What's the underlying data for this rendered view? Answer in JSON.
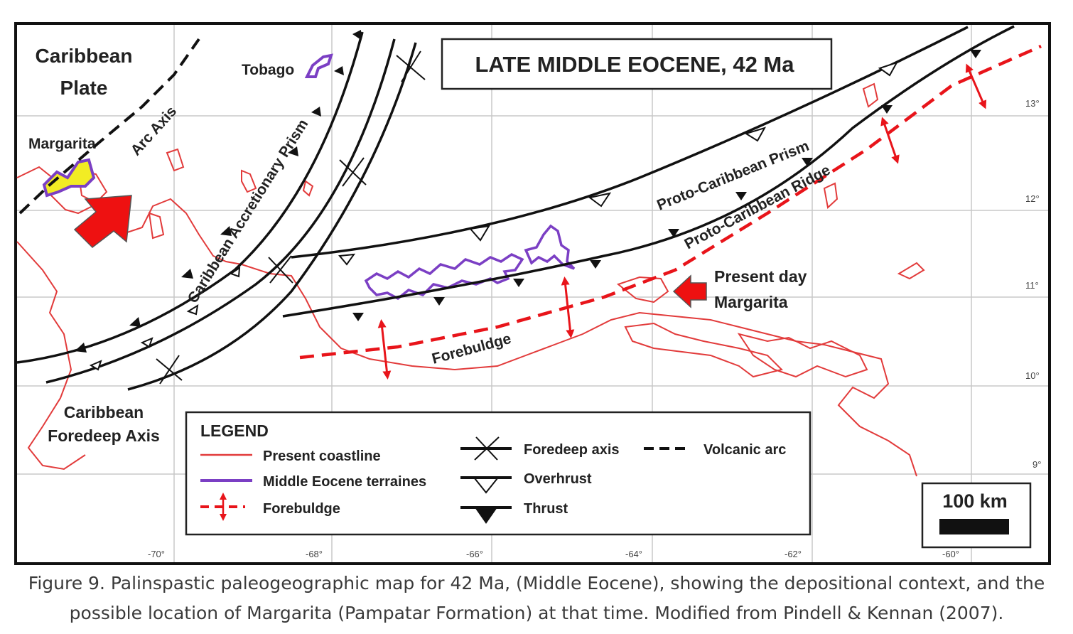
{
  "title": "LATE MIDDLE EOCENE, 42 Ma",
  "labels": {
    "caribbean_plate": [
      "Caribbean",
      "Plate"
    ],
    "margarita": "Margarita",
    "arc_axis": "Arc Axis",
    "tobago": "Tobago",
    "accretionary_prism": "Caribbean Accretionary Prism",
    "proto_prism": "Proto-Caribbean Prism",
    "proto_ridge": "Proto-Caribbean Ridge",
    "present_day_margarita": [
      "Present day",
      "Margarita"
    ],
    "forebulge": "Forebuldge",
    "foredeep": [
      "Caribbean",
      "Foredeep Axis"
    ]
  },
  "legend": {
    "title": "LEGEND",
    "items": [
      {
        "label": "Present coastline",
        "color": "#e23b3b"
      },
      {
        "label": "Middle Eocene terraines",
        "color": "#7b3fc4"
      },
      {
        "label": "Forebuldge",
        "color": "#e8141a"
      },
      {
        "label": "Foredeep axis",
        "color": "#111111"
      },
      {
        "label": "Overhrust",
        "color": "#111111"
      },
      {
        "label": "Thrust",
        "color": "#111111"
      },
      {
        "label": "Volcanic arc",
        "color": "#111111"
      }
    ]
  },
  "scale_bar": "100 km",
  "longitudes": [
    "-70°",
    "-68°",
    "-66°",
    "-64°",
    "-62°",
    "-60°"
  ],
  "latitudes": [
    "13°",
    "12°",
    "11°",
    "10°",
    "9°"
  ],
  "caption": [
    "Figure 9. Palinspastic paleogeographic map for 42 Ma, (Middle Eocene), showing the depositional context, and the",
    "possible location of Margarita (Pampatar Formation) at that time. Modified from Pindell & Kennan (2007)."
  ],
  "colors": {
    "coastline": "#e23b3b",
    "terrane": "#7b3fc4",
    "forebulge": "#e8141a",
    "margarita_fill": "#f2ec24",
    "arrow": "#ee1111"
  }
}
